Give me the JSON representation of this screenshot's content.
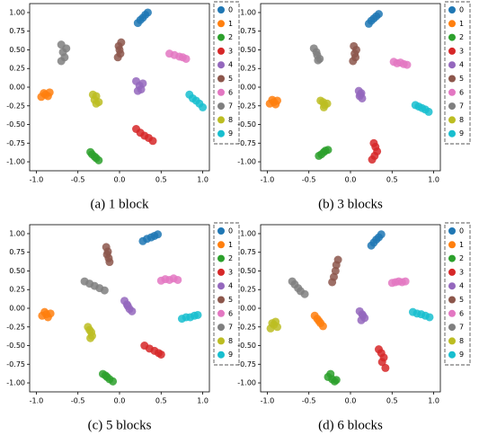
{
  "chart_data": [
    {
      "type": "scatter",
      "caption": "(a) 1 block",
      "xlim": [
        -1.08,
        1.08
      ],
      "ylim": [
        -1.12,
        1.12
      ],
      "xticks": [
        {
          "value": -1,
          "label": "-1.0"
        },
        -0.5,
        {
          "value": 0,
          "label": "0.0"
        },
        0.5,
        {
          "value": 1,
          "label": "1.0"
        }
      ],
      "yticks": [
        {
          "value": -1,
          "label": "-1.00"
        },
        -0.75,
        {
          "value": -0.5,
          "label": "-0.50"
        },
        -0.25,
        {
          "value": 0,
          "label": "0.00"
        },
        0.25,
        {
          "value": 0.5,
          "label": "0.50"
        },
        0.75,
        {
          "value": 1,
          "label": "1.00"
        }
      ],
      "series": [
        {
          "name": "0",
          "color": "#1f77b4",
          "x": [
            0.22,
            0.25,
            0.28,
            0.31,
            0.34
          ],
          "y": [
            0.86,
            0.9,
            0.93,
            0.97,
            1.0
          ]
        },
        {
          "name": "1",
          "color": "#ff7f0e",
          "x": [
            -0.94,
            -0.91,
            -0.89,
            -0.86,
            -0.84
          ],
          "y": [
            -0.13,
            -0.08,
            -0.1,
            -0.12,
            -0.07
          ]
        },
        {
          "name": "2",
          "color": "#2ca02c",
          "x": [
            -0.35,
            -0.33,
            -0.3,
            -0.28,
            -0.25
          ],
          "y": [
            -0.87,
            -0.9,
            -0.93,
            -0.95,
            -0.98
          ]
        },
        {
          "name": "3",
          "color": "#d62728",
          "x": [
            0.2,
            0.25,
            0.3,
            0.35,
            0.4
          ],
          "y": [
            -0.56,
            -0.61,
            -0.65,
            -0.68,
            -0.72
          ]
        },
        {
          "name": "4",
          "color": "#9467bd",
          "x": [
            0.2,
            0.22,
            0.24,
            0.26,
            0.28
          ],
          "y": [
            0.08,
            -0.05,
            0.02,
            -0.03,
            0.05
          ]
        },
        {
          "name": "5",
          "color": "#8c564b",
          "x": [
            -0.02,
            0.01,
            0.0,
            -0.01,
            0.02
          ],
          "y": [
            0.4,
            0.45,
            0.5,
            0.55,
            0.6
          ]
        },
        {
          "name": "6",
          "color": "#e377c2",
          "x": [
            0.6,
            0.66,
            0.72,
            0.76,
            0.8
          ],
          "y": [
            0.45,
            0.43,
            0.41,
            0.4,
            0.38
          ]
        },
        {
          "name": "7",
          "color": "#7f7f7f",
          "x": [
            -0.7,
            -0.66,
            -0.68,
            -0.64,
            -0.7
          ],
          "y": [
            0.35,
            0.4,
            0.47,
            0.52,
            0.57
          ]
        },
        {
          "name": "8",
          "color": "#bcbd22",
          "x": [
            -0.32,
            -0.28,
            -0.3,
            -0.25,
            -0.28
          ],
          "y": [
            -0.1,
            -0.12,
            -0.17,
            -0.2,
            -0.22
          ]
        },
        {
          "name": "9",
          "color": "#17becf",
          "x": [
            0.84,
            0.88,
            0.92,
            0.96,
            1.0
          ],
          "y": [
            -0.1,
            -0.15,
            -0.18,
            -0.22,
            -0.27
          ]
        }
      ]
    },
    {
      "type": "scatter",
      "caption": "(b) 3 blocks",
      "xlim": [
        -1.08,
        1.08
      ],
      "ylim": [
        -1.12,
        1.12
      ],
      "xticks": [
        {
          "value": -1,
          "label": "-1.0"
        },
        -0.5,
        {
          "value": 0,
          "label": "0.0"
        },
        0.5,
        {
          "value": 1,
          "label": "1.0"
        }
      ],
      "yticks": [
        {
          "value": -1,
          "label": "-1.00"
        },
        -0.75,
        {
          "value": -0.5,
          "label": "-0.50"
        },
        -0.25,
        {
          "value": 0,
          "label": "0.00"
        },
        0.25,
        {
          "value": 0.5,
          "label": "0.50"
        },
        0.75,
        {
          "value": 1,
          "label": "1.00"
        }
      ],
      "series": [
        {
          "name": "0",
          "color": "#1f77b4",
          "x": [
            0.22,
            0.25,
            0.28,
            0.31,
            0.34
          ],
          "y": [
            0.85,
            0.89,
            0.92,
            0.95,
            0.98
          ]
        },
        {
          "name": "1",
          "color": "#ff7f0e",
          "x": [
            -0.97,
            -0.94,
            -0.92,
            -0.9,
            -0.88
          ],
          "y": [
            -0.22,
            -0.17,
            -0.2,
            -0.23,
            -0.18
          ]
        },
        {
          "name": "2",
          "color": "#2ca02c",
          "x": [
            -0.38,
            -0.35,
            -0.32,
            -0.3,
            -0.27
          ],
          "y": [
            -0.92,
            -0.9,
            -0.87,
            -0.85,
            -0.84
          ]
        },
        {
          "name": "3",
          "color": "#d62728",
          "x": [
            0.28,
            0.3,
            0.32,
            0.29,
            0.26
          ],
          "y": [
            -0.75,
            -0.8,
            -0.86,
            -0.92,
            -0.97
          ]
        },
        {
          "name": "4",
          "color": "#9467bd",
          "x": [
            0.1,
            0.13,
            0.11,
            0.14,
            0.12
          ],
          "y": [
            -0.05,
            -0.08,
            -0.12,
            -0.15,
            -0.1
          ]
        },
        {
          "name": "5",
          "color": "#8c564b",
          "x": [
            0.03,
            0.06,
            0.05,
            0.07,
            0.04
          ],
          "y": [
            0.35,
            0.4,
            0.45,
            0.5,
            0.55
          ]
        },
        {
          "name": "6",
          "color": "#e377c2",
          "x": [
            0.52,
            0.56,
            0.6,
            0.64,
            0.68
          ],
          "y": [
            0.34,
            0.32,
            0.33,
            0.31,
            0.3
          ]
        },
        {
          "name": "7",
          "color": "#7f7f7f",
          "x": [
            -0.44,
            -0.41,
            -0.4,
            -0.37,
            -0.39
          ],
          "y": [
            0.52,
            0.47,
            0.43,
            0.38,
            0.36
          ]
        },
        {
          "name": "8",
          "color": "#bcbd22",
          "x": [
            -0.36,
            -0.33,
            -0.31,
            -0.28,
            -0.32
          ],
          "y": [
            -0.18,
            -0.2,
            -0.24,
            -0.22,
            -0.27
          ]
        },
        {
          "name": "9",
          "color": "#17becf",
          "x": [
            0.78,
            0.82,
            0.86,
            0.9,
            0.94
          ],
          "y": [
            -0.24,
            -0.26,
            -0.28,
            -0.3,
            -0.33
          ]
        }
      ]
    },
    {
      "type": "scatter",
      "caption": "(c) 5 blocks",
      "xlim": [
        -1.08,
        1.08
      ],
      "ylim": [
        -1.12,
        1.12
      ],
      "xticks": [
        {
          "value": -1,
          "label": "-1.0"
        },
        -0.5,
        {
          "value": 0,
          "label": "0.0"
        },
        0.5,
        {
          "value": 1,
          "label": "1.0"
        }
      ],
      "yticks": [
        {
          "value": -1,
          "label": "-1.00"
        },
        -0.75,
        {
          "value": -0.5,
          "label": "-0.50"
        },
        -0.25,
        {
          "value": 0,
          "label": "0.00"
        },
        0.25,
        {
          "value": 0.5,
          "label": "0.50"
        },
        0.75,
        {
          "value": 1,
          "label": "1.00"
        }
      ],
      "series": [
        {
          "name": "0",
          "color": "#1f77b4",
          "x": [
            0.28,
            0.33,
            0.38,
            0.42,
            0.46
          ],
          "y": [
            0.9,
            0.93,
            0.95,
            0.97,
            0.99
          ]
        },
        {
          "name": "1",
          "color": "#ff7f0e",
          "x": [
            -0.93,
            -0.9,
            -0.88,
            -0.86,
            -0.83
          ],
          "y": [
            -0.1,
            -0.05,
            -0.08,
            -0.12,
            -0.07
          ]
        },
        {
          "name": "2",
          "color": "#2ca02c",
          "x": [
            -0.2,
            -0.17,
            -0.15,
            -0.12,
            -0.08
          ],
          "y": [
            -0.88,
            -0.9,
            -0.92,
            -0.95,
            -0.98
          ]
        },
        {
          "name": "3",
          "color": "#d62728",
          "x": [
            0.3,
            0.36,
            0.42,
            0.47,
            0.5
          ],
          "y": [
            -0.5,
            -0.54,
            -0.57,
            -0.6,
            -0.62
          ]
        },
        {
          "name": "4",
          "color": "#9467bd",
          "x": [
            0.06,
            0.09,
            0.1,
            0.12,
            0.15
          ],
          "y": [
            0.1,
            0.05,
            0.03,
            -0.01,
            -0.04
          ]
        },
        {
          "name": "5",
          "color": "#8c564b",
          "x": [
            -0.16,
            -0.14,
            -0.15,
            -0.13,
            -0.12
          ],
          "y": [
            0.82,
            0.76,
            0.72,
            0.67,
            0.62
          ]
        },
        {
          "name": "6",
          "color": "#e377c2",
          "x": [
            0.5,
            0.55,
            0.6,
            0.65,
            0.7
          ],
          "y": [
            0.37,
            0.39,
            0.38,
            0.4,
            0.38
          ]
        },
        {
          "name": "7",
          "color": "#7f7f7f",
          "x": [
            -0.42,
            -0.36,
            -0.3,
            -0.24,
            -0.18
          ],
          "y": [
            0.36,
            0.33,
            0.3,
            0.27,
            0.24
          ]
        },
        {
          "name": "8",
          "color": "#bcbd22",
          "x": [
            -0.38,
            -0.36,
            -0.34,
            -0.33,
            -0.35
          ],
          "y": [
            -0.25,
            -0.29,
            -0.32,
            -0.37,
            -0.4
          ]
        },
        {
          "name": "9",
          "color": "#17becf",
          "x": [
            0.75,
            0.8,
            0.85,
            0.9,
            0.94
          ],
          "y": [
            -0.14,
            -0.12,
            -0.12,
            -0.1,
            -0.09
          ]
        }
      ]
    },
    {
      "type": "scatter",
      "caption": "(d) 6 blocks",
      "xlim": [
        -1.08,
        1.08
      ],
      "ylim": [
        -1.12,
        1.12
      ],
      "xticks": [
        {
          "value": -1,
          "label": "-1.0"
        },
        -0.5,
        {
          "value": 0,
          "label": "0.0"
        },
        0.5,
        {
          "value": 1,
          "label": "1.0"
        }
      ],
      "yticks": [
        {
          "value": -1,
          "label": "-1.00"
        },
        -0.75,
        {
          "value": -0.5,
          "label": "-0.50"
        },
        -0.25,
        {
          "value": 0,
          "label": "0.00"
        },
        0.25,
        {
          "value": 0.5,
          "label": "0.50"
        },
        0.75,
        {
          "value": 1,
          "label": "1.00"
        }
      ],
      "series": [
        {
          "name": "0",
          "color": "#1f77b4",
          "x": [
            0.25,
            0.28,
            0.31,
            0.34,
            0.37
          ],
          "y": [
            0.84,
            0.88,
            0.92,
            0.95,
            0.99
          ]
        },
        {
          "name": "1",
          "color": "#ff7f0e",
          "x": [
            -0.43,
            -0.4,
            -0.38,
            -0.36,
            -0.33
          ],
          "y": [
            -0.1,
            -0.14,
            -0.17,
            -0.2,
            -0.24
          ]
        },
        {
          "name": "2",
          "color": "#2ca02c",
          "x": [
            -0.27,
            -0.24,
            -0.22,
            -0.19,
            -0.17
          ],
          "y": [
            -0.92,
            -0.88,
            -0.95,
            -0.98,
            -0.96
          ]
        },
        {
          "name": "3",
          "color": "#d62728",
          "x": [
            0.34,
            0.37,
            0.4,
            0.38,
            0.42
          ],
          "y": [
            -0.55,
            -0.6,
            -0.66,
            -0.72,
            -0.8
          ]
        },
        {
          "name": "4",
          "color": "#9467bd",
          "x": [
            0.11,
            0.14,
            0.15,
            0.17,
            0.13
          ],
          "y": [
            -0.04,
            -0.08,
            -0.1,
            -0.13,
            -0.16
          ]
        },
        {
          "name": "5",
          "color": "#8c564b",
          "x": [
            -0.15,
            -0.17,
            -0.18,
            -0.2,
            -0.22
          ],
          "y": [
            0.65,
            0.58,
            0.5,
            0.42,
            0.35
          ]
        },
        {
          "name": "6",
          "color": "#e377c2",
          "x": [
            0.5,
            0.54,
            0.58,
            0.62,
            0.66
          ],
          "y": [
            0.34,
            0.35,
            0.36,
            0.35,
            0.36
          ]
        },
        {
          "name": "7",
          "color": "#7f7f7f",
          "x": [
            -0.7,
            -0.67,
            -0.63,
            -0.6,
            -0.55
          ],
          "y": [
            0.36,
            0.32,
            0.27,
            0.23,
            0.19
          ]
        },
        {
          "name": "8",
          "color": "#bcbd22",
          "x": [
            -0.96,
            -0.94,
            -0.92,
            -0.9,
            -0.88
          ],
          "y": [
            -0.27,
            -0.2,
            -0.22,
            -0.18,
            -0.25
          ]
        },
        {
          "name": "9",
          "color": "#17becf",
          "x": [
            0.75,
            0.8,
            0.85,
            0.9,
            0.95
          ],
          "y": [
            -0.05,
            -0.07,
            -0.08,
            -0.1,
            -0.12
          ]
        }
      ]
    }
  ]
}
